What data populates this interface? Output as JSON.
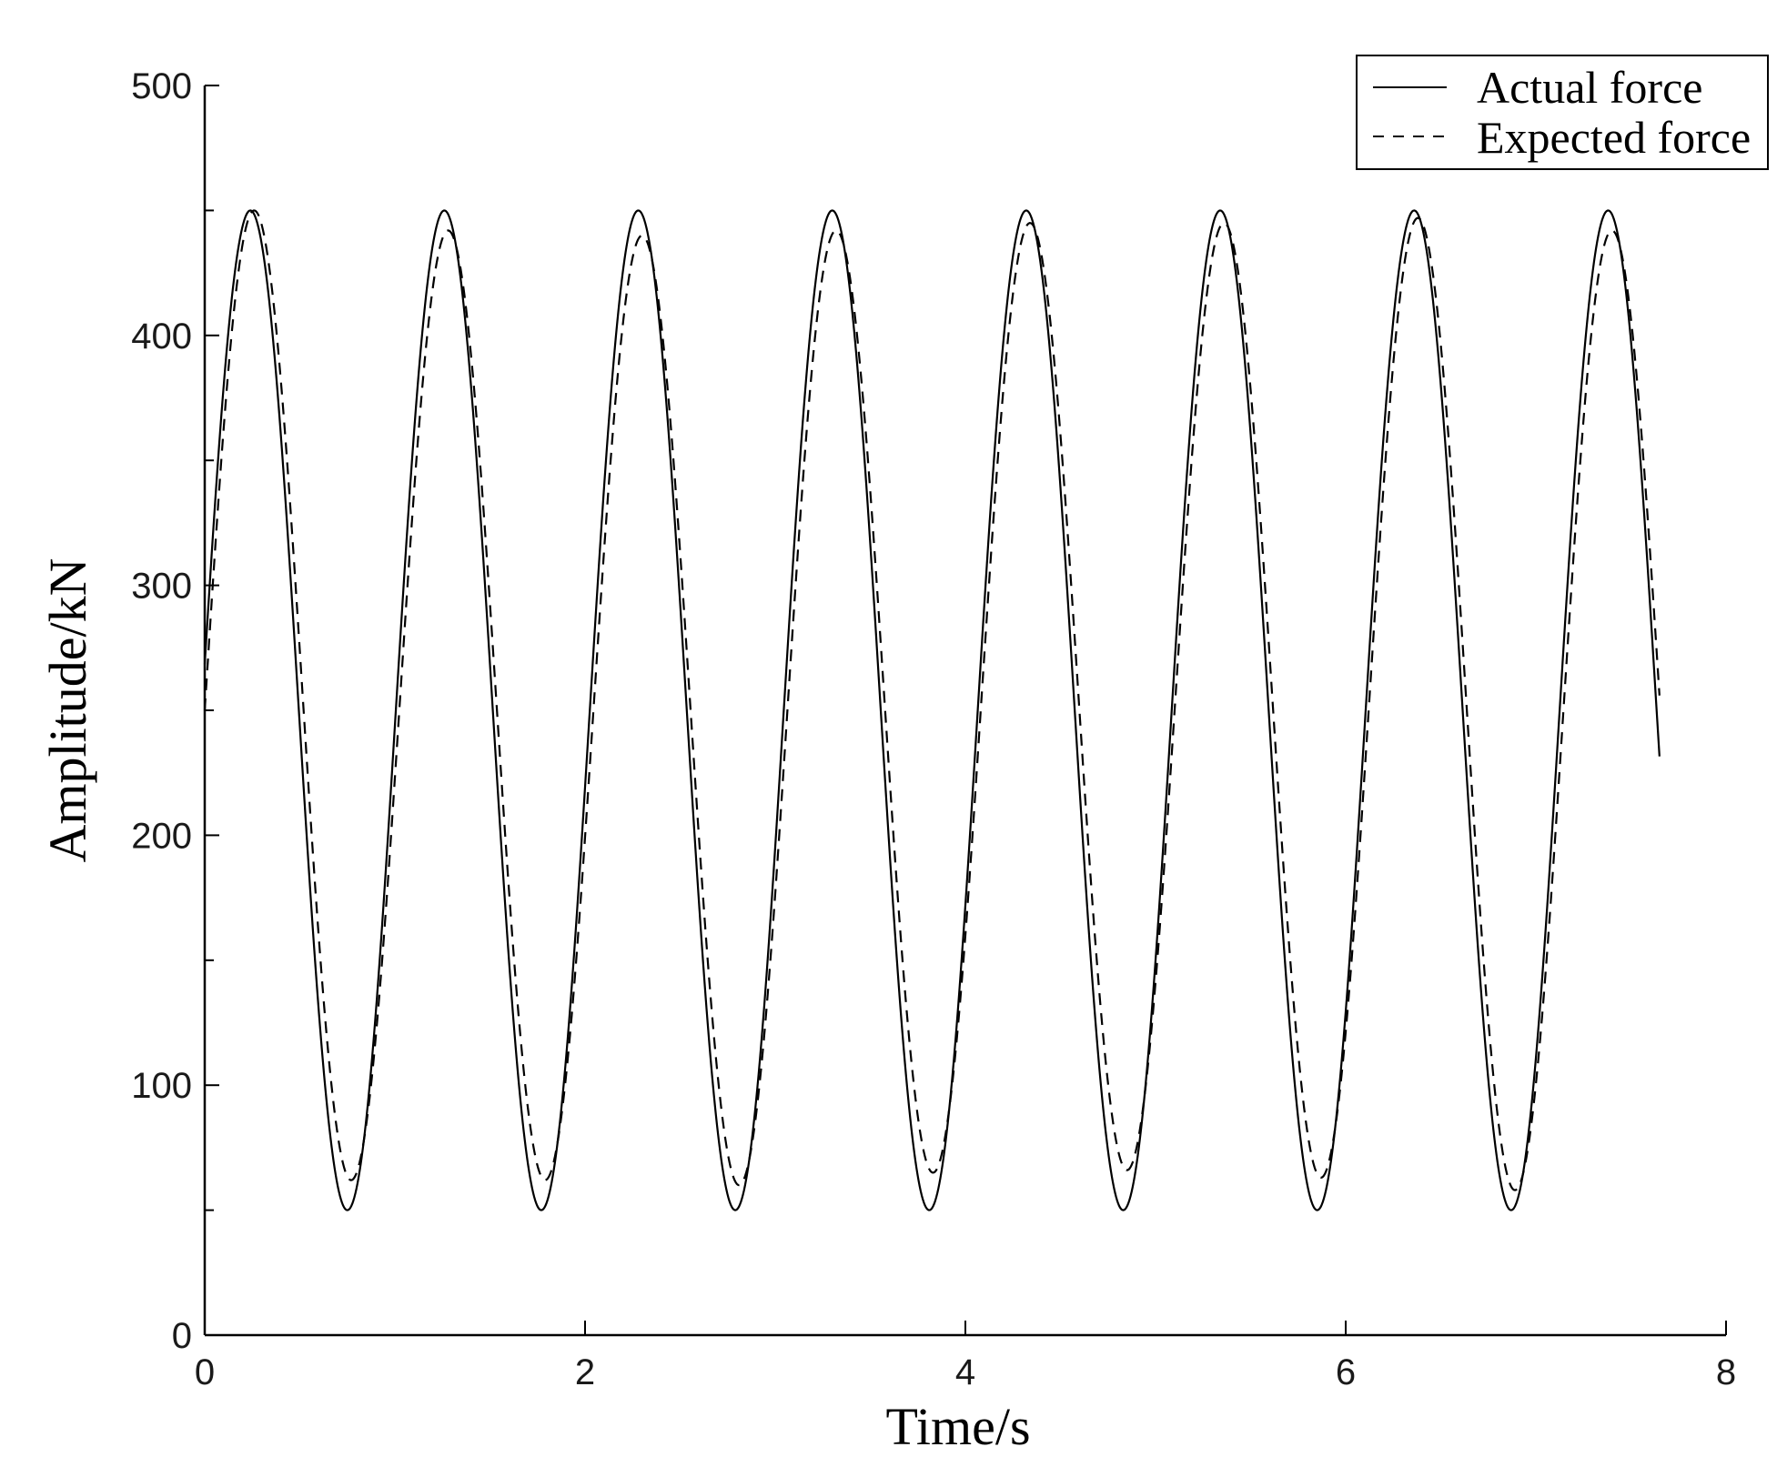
{
  "chart_data": {
    "type": "line",
    "title": "",
    "xlabel": "Time/s",
    "ylabel": "Amplitude/kN",
    "xlim": [
      0,
      8
    ],
    "ylim": [
      0,
      500
    ],
    "xticks": [
      "0",
      "2",
      "4",
      "6",
      "8"
    ],
    "yticks": [
      "0",
      "100",
      "200",
      "300",
      "400",
      "500"
    ],
    "grid": false,
    "legend_position": "top-right",
    "series": [
      {
        "name": "Actual force",
        "style": "solid",
        "color": "#000000",
        "x_start": 0,
        "x_end": 7.65,
        "mean": 250,
        "amplitude": 200,
        "period_s": 1.02,
        "first_peak_time_s": 0.24,
        "start_value": 278,
        "end_value": 270,
        "peaks": [
          450,
          450,
          450,
          450,
          450,
          450,
          450,
          450
        ],
        "troughs": [
          50,
          50,
          50,
          50,
          50,
          50,
          50
        ]
      },
      {
        "name": "Expected force",
        "style": "dashed",
        "color": "#000000",
        "x_start": 0,
        "x_end": 7.65,
        "mean": 254,
        "amplitude": 193,
        "period_s": 1.02,
        "first_peak_time_s": 0.26,
        "start_value": 275,
        "end_value": 268,
        "peaks": [
          450,
          442,
          440,
          442,
          445,
          445,
          447,
          442
        ],
        "troughs": [
          62,
          62,
          60,
          65,
          66,
          63,
          58
        ]
      }
    ]
  }
}
